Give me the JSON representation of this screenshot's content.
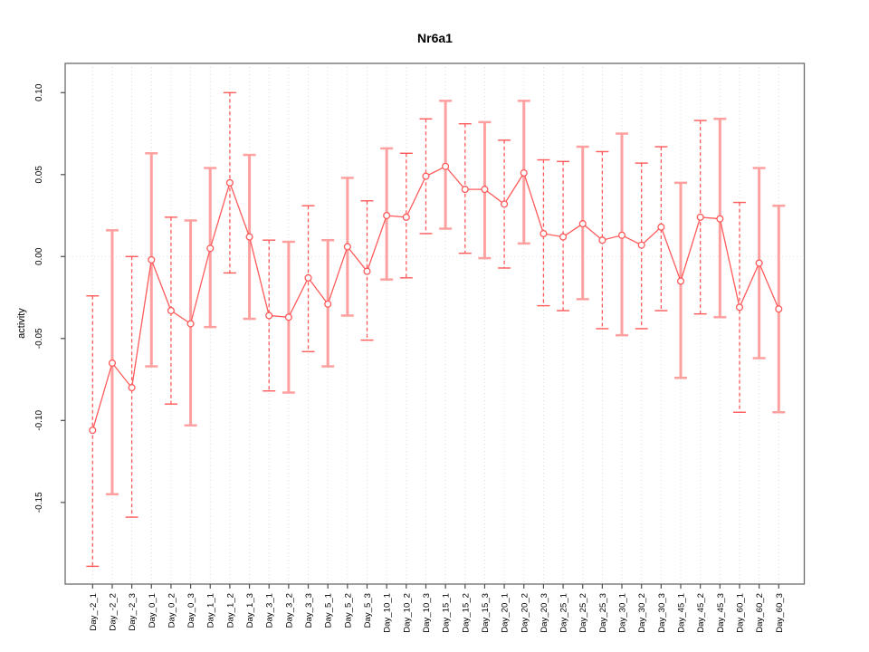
{
  "title": "Nr6a1",
  "chart_data": {
    "type": "line",
    "subtype": "means-with-error-bars",
    "title": "Nr6a1",
    "xlabel": "",
    "ylabel": "activity",
    "legend": "none",
    "grid": "vertical dotted gridline at every category; dotted horizontal line at y=0",
    "yticks": [
      "0.10",
      "0.05",
      "0.00",
      "-0.05",
      "-0.10",
      "-0.15"
    ],
    "ytick_values": [
      0.1,
      0.05,
      0.0,
      -0.05,
      -0.1,
      -0.15
    ],
    "ylim": [
      -0.2,
      0.115
    ],
    "categories": [
      "Day_-2_1",
      "Day_-2_2",
      "Day_-2_3",
      "Day_0_1",
      "Day_0_2",
      "Day_0_3",
      "Day_1_1",
      "Day_1_2",
      "Day_1_3",
      "Day_3_1",
      "Day_3_2",
      "Day_3_3",
      "Day_5_1",
      "Day_5_2",
      "Day_5_3",
      "Day_10_1",
      "Day_10_2",
      "Day_10_3",
      "Day_15_1",
      "Day_15_2",
      "Day_15_3",
      "Day_20_1",
      "Day_20_2",
      "Day_20_3",
      "Day_25_1",
      "Day_25_2",
      "Day_25_3",
      "Day_30_1",
      "Day_30_2",
      "Day_30_3",
      "Day_45_1",
      "Day_45_2",
      "Day_45_3",
      "Day_60_1",
      "Day_60_2",
      "Day_60_3"
    ],
    "series": [
      {
        "name": "activity",
        "marker": "open-circle",
        "values": [
          -0.106,
          -0.065,
          -0.08,
          -0.002,
          -0.033,
          -0.041,
          0.005,
          0.045,
          0.012,
          -0.036,
          -0.037,
          -0.013,
          -0.029,
          0.006,
          -0.009,
          0.025,
          0.024,
          0.049,
          0.055,
          0.041,
          0.041,
          0.032,
          0.051,
          0.014,
          0.012,
          0.02,
          0.01,
          0.013,
          0.007,
          0.018,
          -0.015,
          0.024,
          0.023,
          -0.031,
          -0.004,
          -0.032
        ],
        "error_high": [
          -0.024,
          0.016,
          0.0,
          0.063,
          0.024,
          0.022,
          0.054,
          0.1,
          0.062,
          0.01,
          0.009,
          0.031,
          0.01,
          0.048,
          0.034,
          0.066,
          0.063,
          0.084,
          0.095,
          0.081,
          0.082,
          0.071,
          0.095,
          0.059,
          0.058,
          0.067,
          0.064,
          0.075,
          0.057,
          0.067,
          0.045,
          0.083,
          0.084,
          0.033,
          0.054,
          0.031
        ],
        "error_low": [
          -0.189,
          -0.145,
          -0.159,
          -0.067,
          -0.09,
          -0.103,
          -0.043,
          -0.01,
          -0.038,
          -0.082,
          -0.083,
          -0.058,
          -0.067,
          -0.036,
          -0.051,
          -0.014,
          -0.013,
          0.014,
          0.017,
          0.002,
          -0.001,
          -0.007,
          0.008,
          -0.03,
          -0.033,
          -0.026,
          -0.044,
          -0.048,
          -0.044,
          -0.033,
          -0.074,
          -0.035,
          -0.037,
          -0.095,
          -0.062,
          -0.095
        ],
        "bar_styles": [
          "dashed",
          "solid",
          "dashed",
          "solid",
          "dashed",
          "solid",
          "solid",
          "dashed",
          "solid",
          "dashed",
          "solid",
          "dashed",
          "solid",
          "solid",
          "dashed",
          "solid",
          "dashed",
          "dashed",
          "solid",
          "dashed",
          "solid",
          "dashed",
          "solid",
          "dashed",
          "dashed",
          "solid",
          "dashed",
          "solid",
          "dashed",
          "dashed",
          "solid",
          "dashed",
          "solid",
          "dashed",
          "solid",
          "solid"
        ]
      }
    ],
    "colors": {
      "series_line": "#ff5a5a",
      "marker_stroke": "#ff5a5a",
      "error_bar_solid": "#ffa0a0",
      "error_bar_dashed": "#ff5a5a",
      "gridline": "#dcdcdc",
      "zero_line": "#e2e2e2",
      "axis_box": "#6b6b6b",
      "tick": "#4d4d4d",
      "text": "#000000"
    }
  }
}
